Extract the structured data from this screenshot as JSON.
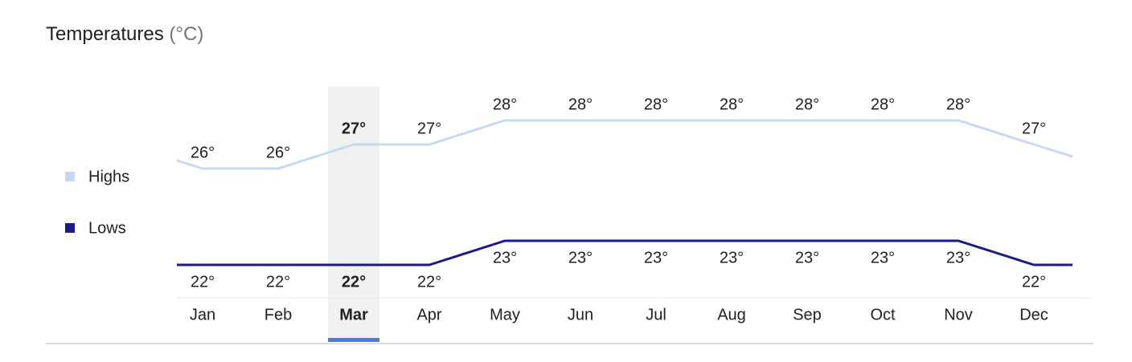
{
  "chart_data": {
    "type": "line",
    "title": "Temperatures",
    "unit": "(°C)",
    "categories": [
      "Jan",
      "Feb",
      "Mar",
      "Apr",
      "May",
      "Jun",
      "Jul",
      "Aug",
      "Sep",
      "Oct",
      "Nov",
      "Dec"
    ],
    "highlight": "Mar",
    "series": [
      {
        "name": "Highs",
        "color": "#c6d8f5",
        "values": [
          26,
          26,
          27,
          27,
          28,
          28,
          28,
          28,
          28,
          28,
          28,
          27
        ],
        "value_labels": [
          "26°",
          "26°",
          "27°",
          "27°",
          "28°",
          "28°",
          "28°",
          "28°",
          "28°",
          "28°",
          "28°",
          "27°"
        ]
      },
      {
        "name": "Lows",
        "color": "#1a1a8c",
        "values": [
          22,
          22,
          22,
          22,
          23,
          23,
          23,
          23,
          23,
          23,
          23,
          22
        ],
        "value_labels": [
          "22°",
          "22°",
          "22°",
          "22°",
          "23°",
          "23°",
          "23°",
          "23°",
          "23°",
          "23°",
          "23°",
          "22°"
        ]
      }
    ]
  }
}
